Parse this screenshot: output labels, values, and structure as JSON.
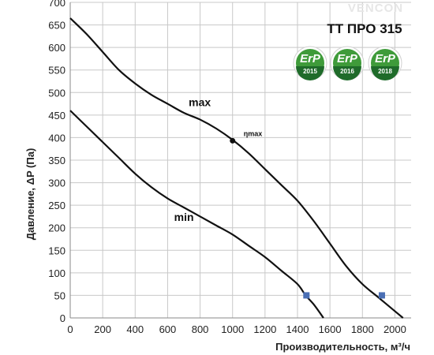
{
  "brand": "VENCON",
  "model_title": "TT ПРО 315",
  "erp_badges": [
    {
      "text": "ErP",
      "year": "2015"
    },
    {
      "text": "ErP",
      "year": "2016"
    },
    {
      "text": "ErP",
      "year": "2018"
    }
  ],
  "colors": {
    "curve": "#111111",
    "marker": "#4a6fb5",
    "grid": "#c8c8c8",
    "erp_green": "#3f9b3a",
    "erp_dark": "#1f6b2a"
  },
  "chart_data": {
    "type": "line",
    "ylabel": "Давление, ΔP (Па)",
    "xlabel": "Производительность,  м³/ч",
    "xlim": [
      0,
      2100
    ],
    "ylim": [
      0,
      700
    ],
    "x_ticks": [
      "0",
      "200",
      "400",
      "600",
      "800",
      "1000",
      "1200",
      "1400",
      "1600",
      "1800",
      "2000"
    ],
    "y_ticks": [
      "0",
      "50",
      "100",
      "150",
      "200",
      "250",
      "300",
      "350",
      "400",
      "450",
      "500",
      "550",
      "600",
      "650",
      "700"
    ],
    "grid": true,
    "series": [
      {
        "name": "max",
        "label_at": {
          "x": 730,
          "y": 470
        },
        "points": [
          [
            0,
            665
          ],
          [
            100,
            630
          ],
          [
            200,
            590
          ],
          [
            300,
            550
          ],
          [
            400,
            520
          ],
          [
            500,
            495
          ],
          [
            600,
            475
          ],
          [
            700,
            455
          ],
          [
            800,
            440
          ],
          [
            900,
            420
          ],
          [
            1000,
            395
          ],
          [
            1100,
            365
          ],
          [
            1200,
            330
          ],
          [
            1300,
            295
          ],
          [
            1400,
            260
          ],
          [
            1500,
            215
          ],
          [
            1600,
            165
          ],
          [
            1700,
            115
          ],
          [
            1800,
            75
          ],
          [
            1900,
            45
          ],
          [
            2000,
            15
          ],
          [
            2050,
            0
          ]
        ]
      },
      {
        "name": "min",
        "label_at": {
          "x": 640,
          "y": 215
        },
        "points": [
          [
            0,
            460
          ],
          [
            100,
            425
          ],
          [
            200,
            390
          ],
          [
            300,
            355
          ],
          [
            400,
            320
          ],
          [
            500,
            290
          ],
          [
            600,
            265
          ],
          [
            700,
            245
          ],
          [
            800,
            225
          ],
          [
            900,
            205
          ],
          [
            1000,
            185
          ],
          [
            1100,
            160
          ],
          [
            1200,
            135
          ],
          [
            1300,
            105
          ],
          [
            1400,
            75
          ],
          [
            1450,
            50
          ],
          [
            1500,
            30
          ],
          [
            1560,
            0
          ]
        ]
      }
    ],
    "annotations": [
      {
        "label": "ηmax",
        "x": 1000,
        "y": 393,
        "type": "point"
      }
    ],
    "markers": [
      {
        "x": 1455,
        "y": 50
      },
      {
        "x": 1920,
        "y": 50
      }
    ]
  }
}
